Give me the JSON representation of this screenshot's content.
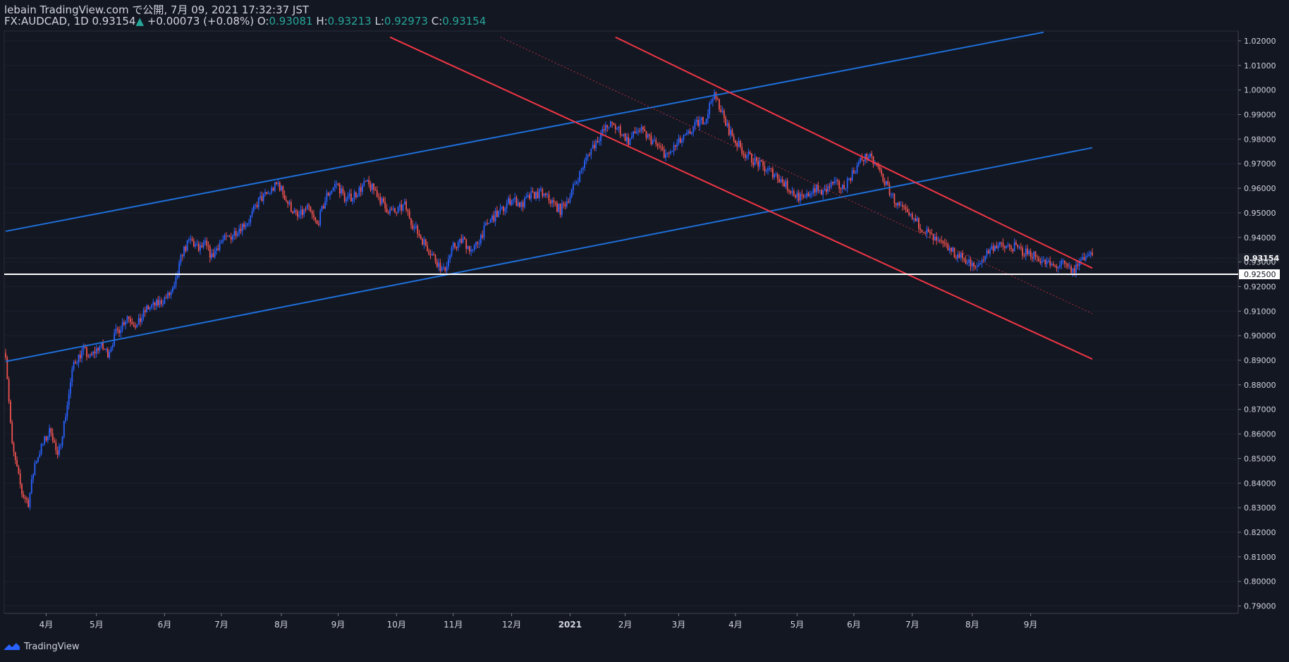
{
  "header": {
    "publish_line": "lebain TradingView.com で公開, 7月 09, 2021 17:32:37 JST",
    "symbol": "FX:AUDCAD, 1D",
    "last": "0.93154",
    "change": "+0.00073 (+0.08%)",
    "o_label": "O:",
    "o_value": "0.93081",
    "h_label": "H:",
    "h_value": "0.93213",
    "l_label": "L:",
    "l_value": "0.92973",
    "c_label": "C:",
    "c_value": "0.93154"
  },
  "footer": {
    "brand": "TradingView"
  },
  "colors": {
    "background": "#131722",
    "up": "#2962ff",
    "down": "#ef5350",
    "blue_trend": "#1e6fd9",
    "red_trend": "#f23645",
    "level": "#ffffff"
  },
  "chart_data": {
    "type": "candlestick",
    "symbol": "FX:AUDCAD",
    "interval": "1D",
    "ylim": [
      0.787,
      1.024
    ],
    "y_ticks": [
      "1.02000",
      "1.01000",
      "1.00000",
      "0.99000",
      "0.98000",
      "0.97000",
      "0.96000",
      "0.95000",
      "0.94000",
      "0.93000",
      "0.92000",
      "0.91000",
      "0.90000",
      "0.89000",
      "0.88000",
      "0.87000",
      "0.86000",
      "0.85000",
      "0.84000",
      "0.83000",
      "0.82000",
      "0.81000",
      "0.80000",
      "0.79000"
    ],
    "x_ticks": [
      "4月",
      "5月",
      "6月",
      "7月",
      "8月",
      "9月",
      "10月",
      "11月",
      "12月",
      "2021",
      "2月",
      "3月",
      "4月",
      "5月",
      "6月",
      "7月",
      "8月",
      "9月"
    ],
    "last_price_label": "0.93154",
    "horizontal_level": {
      "value": 0.925,
      "label": "0.92500"
    },
    "price_path": [
      [
        0,
        0.893
      ],
      [
        4,
        0.855
      ],
      [
        10,
        0.836
      ],
      [
        14,
        0.832
      ],
      [
        18,
        0.848
      ],
      [
        23,
        0.856
      ],
      [
        28,
        0.862
      ],
      [
        32,
        0.85
      ],
      [
        37,
        0.868
      ],
      [
        42,
        0.889
      ],
      [
        48,
        0.894
      ],
      [
        52,
        0.891
      ],
      [
        58,
        0.896
      ],
      [
        63,
        0.893
      ],
      [
        68,
        0.901
      ],
      [
        75,
        0.908
      ],
      [
        81,
        0.904
      ],
      [
        87,
        0.911
      ],
      [
        94,
        0.913
      ],
      [
        100,
        0.916
      ],
      [
        104,
        0.919
      ],
      [
        109,
        0.934
      ],
      [
        114,
        0.939
      ],
      [
        119,
        0.935
      ],
      [
        123,
        0.937
      ],
      [
        127,
        0.932
      ],
      [
        132,
        0.938
      ],
      [
        138,
        0.94
      ],
      [
        144,
        0.944
      ],
      [
        150,
        0.947
      ],
      [
        156,
        0.955
      ],
      [
        162,
        0.958
      ],
      [
        168,
        0.962
      ],
      [
        174,
        0.954
      ],
      [
        180,
        0.948
      ],
      [
        186,
        0.952
      ],
      [
        192,
        0.945
      ],
      [
        198,
        0.957
      ],
      [
        204,
        0.962
      ],
      [
        210,
        0.955
      ],
      [
        216,
        0.958
      ],
      [
        222,
        0.962
      ],
      [
        228,
        0.959
      ],
      [
        234,
        0.952
      ],
      [
        240,
        0.95
      ],
      [
        246,
        0.953
      ],
      [
        252,
        0.944
      ],
      [
        258,
        0.938
      ],
      [
        264,
        0.932
      ],
      [
        270,
        0.926
      ],
      [
        276,
        0.936
      ],
      [
        282,
        0.939
      ],
      [
        288,
        0.934
      ],
      [
        294,
        0.942
      ],
      [
        300,
        0.948
      ],
      [
        306,
        0.951
      ],
      [
        312,
        0.956
      ],
      [
        318,
        0.953
      ],
      [
        324,
        0.957
      ],
      [
        330,
        0.958
      ],
      [
        336,
        0.955
      ],
      [
        342,
        0.951
      ],
      [
        348,
        0.957
      ],
      [
        354,
        0.966
      ],
      [
        360,
        0.975
      ],
      [
        366,
        0.981
      ],
      [
        372,
        0.986
      ],
      [
        378,
        0.984
      ],
      [
        384,
        0.979
      ],
      [
        390,
        0.984
      ],
      [
        396,
        0.981
      ],
      [
        402,
        0.977
      ],
      [
        408,
        0.973
      ],
      [
        414,
        0.978
      ],
      [
        420,
        0.981
      ],
      [
        426,
        0.986
      ],
      [
        432,
        0.989
      ],
      [
        436,
        0.998
      ],
      [
        440,
        0.994
      ],
      [
        444,
        0.986
      ],
      [
        450,
        0.979
      ],
      [
        456,
        0.974
      ],
      [
        462,
        0.971
      ],
      [
        468,
        0.968
      ],
      [
        474,
        0.966
      ],
      [
        480,
        0.962
      ],
      [
        486,
        0.958
      ],
      [
        492,
        0.955
      ],
      [
        498,
        0.96
      ],
      [
        504,
        0.958
      ],
      [
        510,
        0.962
      ],
      [
        516,
        0.96
      ],
      [
        522,
        0.966
      ],
      [
        528,
        0.972
      ],
      [
        532,
        0.973
      ],
      [
        538,
        0.968
      ],
      [
        544,
        0.96
      ],
      [
        550,
        0.953
      ],
      [
        556,
        0.949
      ],
      [
        562,
        0.946
      ],
      [
        568,
        0.942
      ],
      [
        574,
        0.938
      ],
      [
        580,
        0.936
      ],
      [
        586,
        0.933
      ],
      [
        592,
        0.931
      ],
      [
        598,
        0.927
      ],
      [
        604,
        0.933
      ],
      [
        610,
        0.937
      ],
      [
        616,
        0.936
      ],
      [
        622,
        0.936
      ],
      [
        628,
        0.934
      ],
      [
        634,
        0.933
      ],
      [
        640,
        0.93
      ],
      [
        646,
        0.928
      ],
      [
        652,
        0.929
      ],
      [
        658,
        0.926
      ],
      [
        664,
        0.932
      ],
      [
        670,
        0.933
      ]
    ],
    "trend_lines": [
      {
        "name": "blue-upper-channel",
        "color": "#1e6fd9",
        "style": "solid",
        "points": [
          [
            0,
            0.9425
          ],
          [
            640,
            1.0235
          ]
        ]
      },
      {
        "name": "blue-lower-channel",
        "color": "#1e6fd9",
        "style": "solid",
        "points": [
          [
            0,
            0.8895
          ],
          [
            670,
            0.9765
          ]
        ]
      },
      {
        "name": "red-upper-channel",
        "color": "#f23645",
        "style": "solid",
        "points": [
          [
            376,
            1.0215
          ],
          [
            670,
            0.9275
          ]
        ]
      },
      {
        "name": "red-lower-channel",
        "color": "#f23645",
        "style": "solid",
        "points": [
          [
            237,
            1.0215
          ],
          [
            670,
            0.8905
          ]
        ]
      },
      {
        "name": "red-mid-channel",
        "color": "#f23645",
        "style": "dotted",
        "points": [
          [
            305,
            1.0215
          ],
          [
            670,
            0.909
          ]
        ]
      }
    ]
  }
}
